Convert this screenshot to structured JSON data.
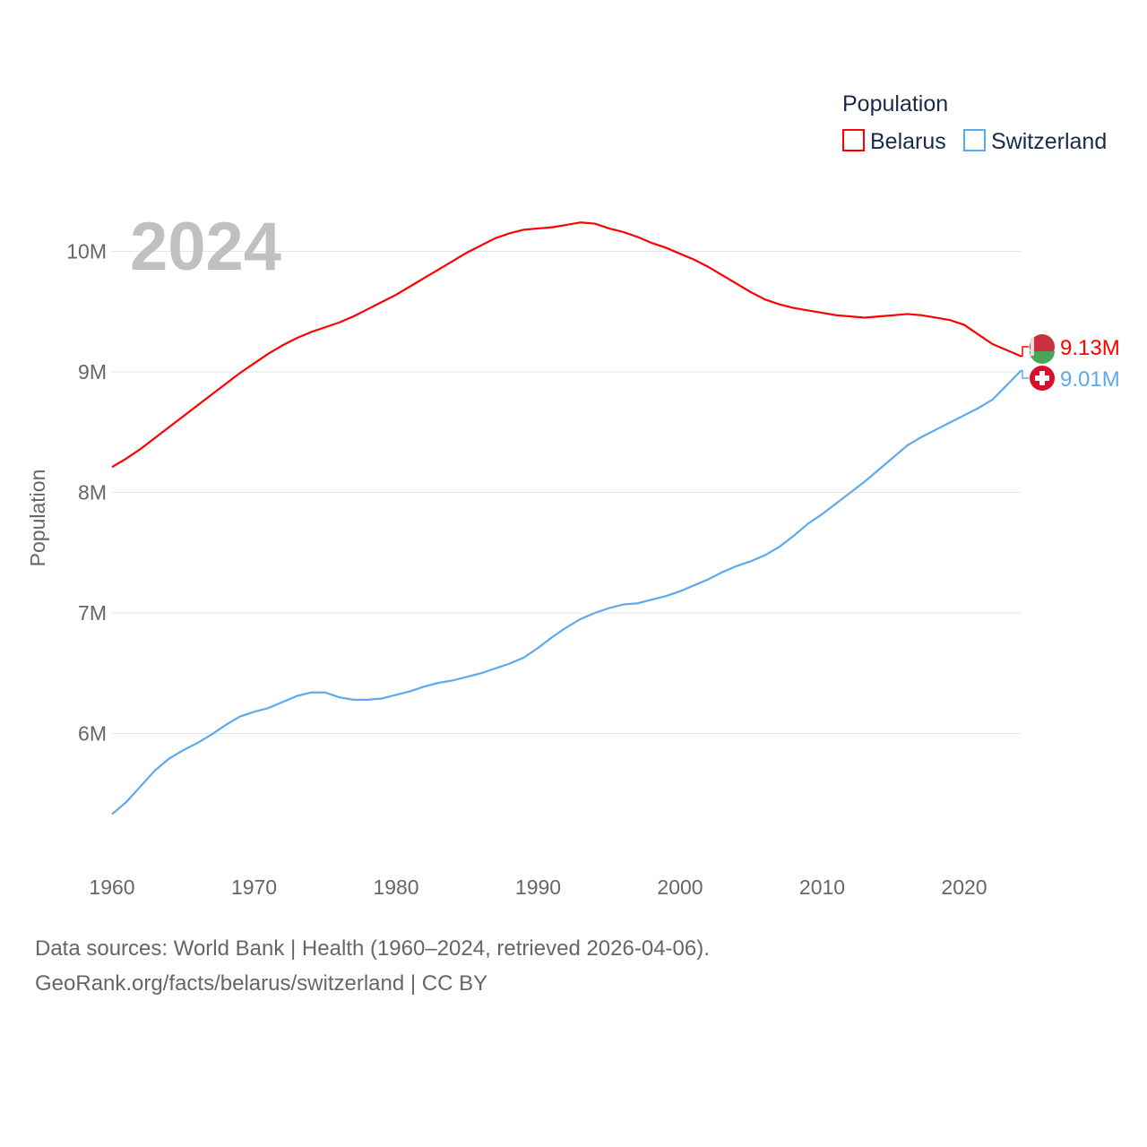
{
  "chart_data": {
    "type": "line",
    "title": "2024",
    "ylabel": "Population",
    "xlabel": "",
    "xlim": [
      1960,
      2024
    ],
    "ylim": [
      5.0,
      10.5
    ],
    "yticks": [
      {
        "v": 6,
        "label": "6M"
      },
      {
        "v": 7,
        "label": "7M"
      },
      {
        "v": 8,
        "label": "8M"
      },
      {
        "v": 9,
        "label": "9M"
      },
      {
        "v": 10,
        "label": "10M"
      }
    ],
    "xticks": [
      "1960",
      "1970",
      "1980",
      "1990",
      "2000",
      "2010",
      "2020"
    ],
    "grid": true,
    "legend": {
      "title": "Population",
      "placement": "top-right"
    },
    "x_start": 1960,
    "series": [
      {
        "name": "Belarus",
        "color": "#ff0000",
        "end_label": "9.13M",
        "values": [
          8.21,
          8.28,
          8.36,
          8.45,
          8.54,
          8.63,
          8.72,
          8.81,
          8.9,
          8.99,
          9.07,
          9.15,
          9.22,
          9.28,
          9.33,
          9.37,
          9.41,
          9.46,
          9.52,
          9.58,
          9.64,
          9.71,
          9.78,
          9.85,
          9.92,
          9.99,
          10.05,
          10.11,
          10.15,
          10.18,
          10.19,
          10.2,
          10.22,
          10.24,
          10.23,
          10.19,
          10.16,
          10.12,
          10.07,
          10.03,
          9.98,
          9.93,
          9.87,
          9.8,
          9.73,
          9.66,
          9.6,
          9.56,
          9.53,
          9.51,
          9.49,
          9.47,
          9.46,
          9.45,
          9.46,
          9.47,
          9.48,
          9.47,
          9.45,
          9.43,
          9.39,
          9.31,
          9.23,
          9.18,
          9.13
        ]
      },
      {
        "name": "Switzerland",
        "color": "#5da9ef",
        "end_label": "9.01M",
        "values": [
          5.33,
          5.43,
          5.56,
          5.69,
          5.79,
          5.86,
          5.92,
          5.99,
          6.07,
          6.14,
          6.18,
          6.21,
          6.26,
          6.31,
          6.34,
          6.34,
          6.3,
          6.28,
          6.28,
          6.29,
          6.32,
          6.35,
          6.39,
          6.42,
          6.44,
          6.47,
          6.5,
          6.54,
          6.58,
          6.63,
          6.71,
          6.8,
          6.88,
          6.95,
          7.0,
          7.04,
          7.07,
          7.08,
          7.11,
          7.14,
          7.18,
          7.23,
          7.28,
          7.34,
          7.39,
          7.43,
          7.48,
          7.55,
          7.64,
          7.74,
          7.82,
          7.91,
          8.0,
          8.09,
          8.19,
          8.29,
          8.39,
          8.46,
          8.52,
          8.58,
          8.64,
          8.7,
          8.77,
          8.89,
          9.01
        ]
      }
    ]
  },
  "footer": {
    "line1": "Data sources: World Bank | Health (1960–2024, retrieved 2026-04-06).",
    "line2": "GeoRank.org/facts/belarus/switzerland | CC BY"
  }
}
